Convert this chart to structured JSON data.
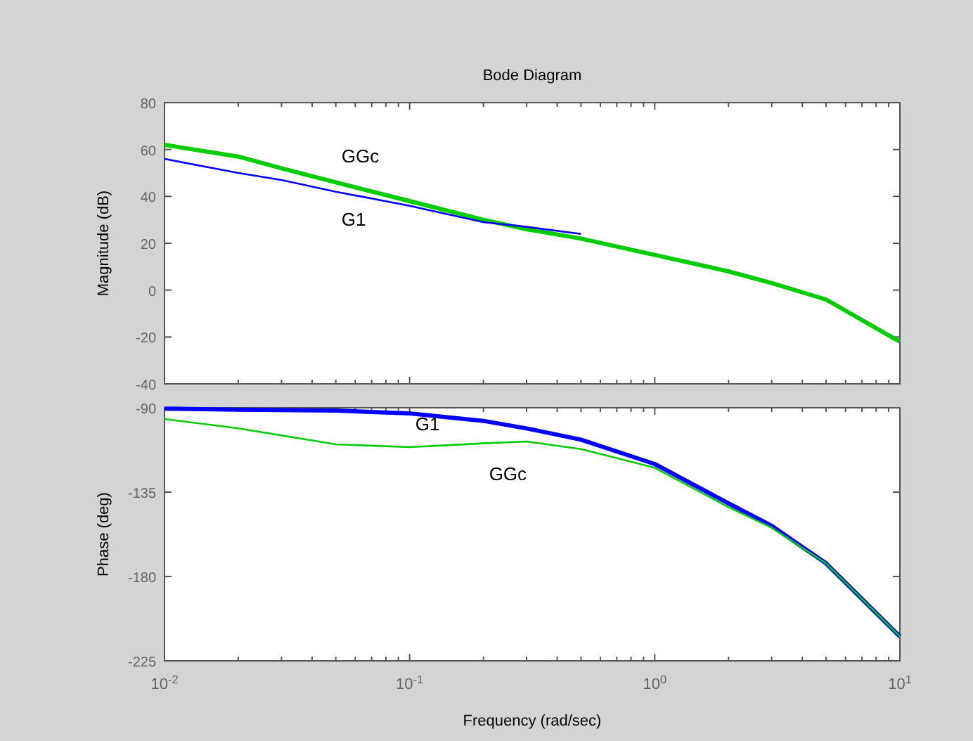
{
  "chart_data": [
    {
      "type": "line",
      "title": "Bode Diagram",
      "ylabel": "Magnitude (dB)",
      "log": "x",
      "grid": false,
      "legend": false,
      "tick_labels": "y",
      "xlim": [
        0.01,
        10
      ],
      "ylim": [
        -40,
        80
      ],
      "yticks": [
        -40,
        -20,
        0,
        20,
        40,
        60,
        80
      ],
      "xticks": [
        {
          "value": 0.01,
          "label": null
        },
        {
          "value": 0.02,
          "label": null
        },
        {
          "value": 0.03,
          "label": null
        },
        {
          "value": 0.04,
          "label": null
        },
        {
          "value": 0.05,
          "label": null
        },
        {
          "value": 0.06,
          "label": null
        },
        {
          "value": 0.07,
          "label": null
        },
        {
          "value": 0.08,
          "label": null
        },
        {
          "value": 0.09,
          "label": null
        },
        {
          "value": 0.1,
          "label": null
        },
        {
          "value": 0.2,
          "label": null
        },
        {
          "value": 0.3,
          "label": null
        },
        {
          "value": 0.4,
          "label": null
        },
        {
          "value": 0.5,
          "label": null
        },
        {
          "value": 0.6,
          "label": null
        },
        {
          "value": 0.7,
          "label": null
        },
        {
          "value": 0.8,
          "label": null
        },
        {
          "value": 0.9,
          "label": null
        },
        {
          "value": 1,
          "label": null
        },
        {
          "value": 2,
          "label": null
        },
        {
          "value": 3,
          "label": null
        },
        {
          "value": 4,
          "label": null
        },
        {
          "value": 5,
          "label": null
        },
        {
          "value": 6,
          "label": null
        },
        {
          "value": 7,
          "label": null
        },
        {
          "value": 8,
          "label": null
        },
        {
          "value": 9,
          "label": null
        },
        {
          "value": 10,
          "label": null
        }
      ],
      "series": [
        {
          "name": "GGc",
          "color": "#00cc00",
          "x": [
            0.01,
            0.02,
            0.03,
            0.05,
            0.1,
            0.2,
            0.3,
            0.5,
            1,
            2,
            3,
            5,
            10
          ],
          "values": [
            62,
            57,
            52,
            46,
            38,
            30,
            26,
            22,
            15,
            8,
            3,
            -4,
            -22
          ]
        },
        {
          "name": "G1",
          "color": "#0000ff",
          "x": [
            0.01,
            0.02,
            0.03,
            0.05,
            0.1,
            0.2,
            0.3,
            0.5
          ],
          "values": [
            56,
            50,
            47,
            42,
            36,
            29,
            27,
            24
          ]
        }
      ]
    },
    {
      "type": "line",
      "xlabel": "Frequency  (rad/sec)",
      "ylabel": "Phase (deg)",
      "log": "x",
      "grid": false,
      "legend": false,
      "xlim": [
        0.01,
        10
      ],
      "ylim": [
        -225,
        -90
      ],
      "yticks": [
        -225,
        -180,
        -135,
        -90
      ],
      "xticks": [
        {
          "value": 0.01,
          "label": "10$^{-2}$"
        },
        {
          "value": 0.02,
          "label": null
        },
        {
          "value": 0.03,
          "label": null
        },
        {
          "value": 0.04,
          "label": null
        },
        {
          "value": 0.05,
          "label": null
        },
        {
          "value": 0.06,
          "label": null
        },
        {
          "value": 0.07,
          "label": null
        },
        {
          "value": 0.08,
          "label": null
        },
        {
          "value": 0.09,
          "label": null
        },
        {
          "value": 0.1,
          "label": "10$^{-1}$"
        },
        {
          "value": 0.2,
          "label": null
        },
        {
          "value": 0.3,
          "label": null
        },
        {
          "value": 0.4,
          "label": null
        },
        {
          "value": 0.5,
          "label": null
        },
        {
          "value": 0.6,
          "label": null
        },
        {
          "value": 0.7,
          "label": null
        },
        {
          "value": 0.8,
          "label": null
        },
        {
          "value": 0.9,
          "label": null
        },
        {
          "value": 1,
          "label": "10$^{0}$"
        },
        {
          "value": 2,
          "label": null
        },
        {
          "value": 3,
          "label": null
        },
        {
          "value": 4,
          "label": null
        },
        {
          "value": 5,
          "label": null
        },
        {
          "value": 6,
          "label": null
        },
        {
          "value": 7,
          "label": null
        },
        {
          "value": 8,
          "label": null
        },
        {
          "value": 9,
          "label": null
        },
        {
          "value": 10,
          "label": "10$^{1}$"
        }
      ],
      "series": [
        {
          "name": "G1",
          "color": "#0000ff",
          "x": [
            0.01,
            0.02,
            0.05,
            0.1,
            0.2,
            0.3,
            0.5,
            1,
            2,
            3,
            5,
            10
          ],
          "values": [
            -90.5,
            -91,
            -91.5,
            -93,
            -97,
            -101,
            -107,
            -120,
            -141,
            -153,
            -173,
            -212
          ]
        },
        {
          "name": "GGc",
          "color": "#00cc00",
          "x": [
            0.01,
            0.02,
            0.05,
            0.1,
            0.2,
            0.3,
            0.5,
            1,
            2,
            3,
            5,
            10
          ],
          "values": [
            -96,
            -101,
            -109.5,
            -111,
            -109,
            -108,
            -112,
            -122,
            -143,
            -154,
            -173,
            -212
          ]
        }
      ]
    }
  ]
}
